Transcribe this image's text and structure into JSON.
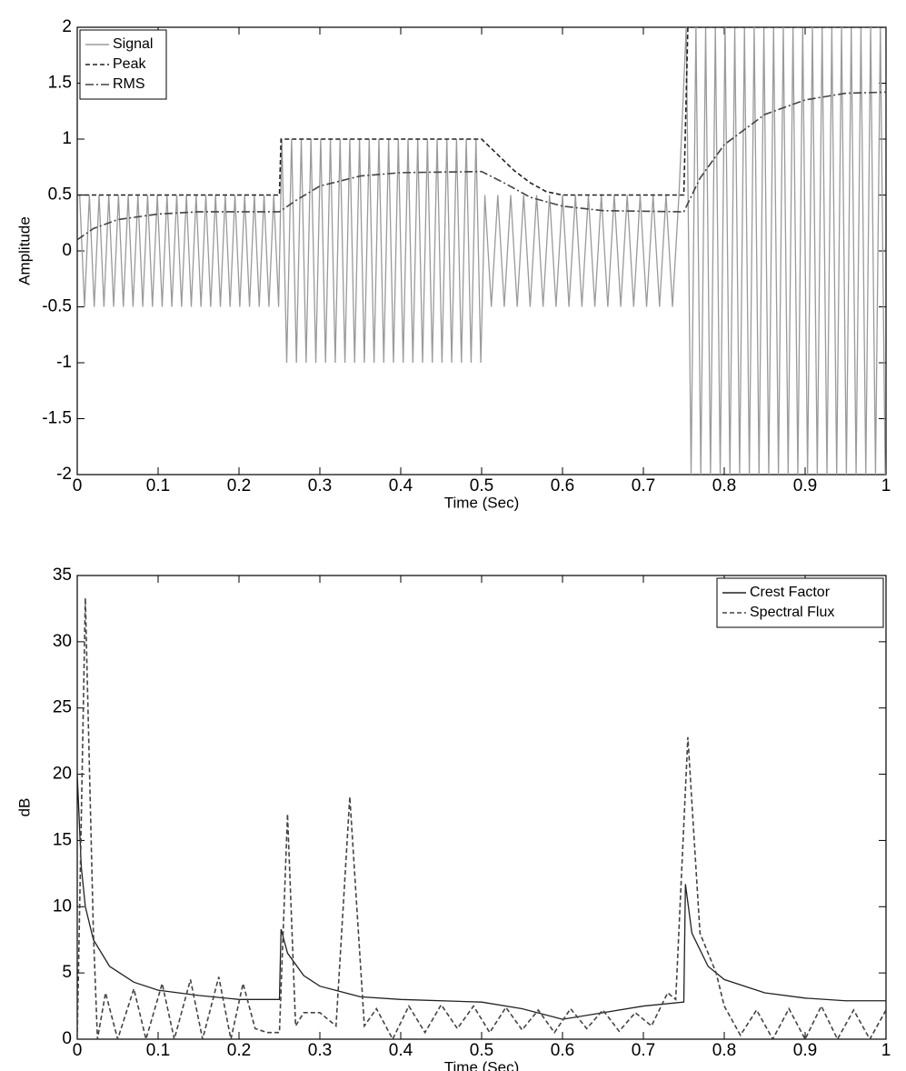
{
  "chart_data": [
    {
      "type": "line",
      "xlabel": "Time (Sec)",
      "ylabel": "Amplitude",
      "xlim": [
        0,
        1
      ],
      "ylim": [
        -2,
        2
      ],
      "xticks": [
        0,
        0.1,
        0.2,
        0.3,
        0.4,
        0.5,
        0.6,
        0.7,
        0.8,
        0.9,
        1
      ],
      "yticks": [
        -2,
        -1.5,
        -1,
        -0.5,
        0,
        0.5,
        1,
        1.5,
        2
      ],
      "legend": "upper left",
      "series": [
        {
          "name": "Signal",
          "color": "#9a9a9a",
          "dash": "solid",
          "x": [
            0.003,
            0.009,
            0.015,
            0.021,
            0.027,
            0.033,
            0.039,
            0.045,
            0.051,
            0.057,
            0.063,
            0.069,
            0.075,
            0.081,
            0.087,
            0.093,
            0.099,
            0.105,
            0.111,
            0.117,
            0.123,
            0.129,
            0.135,
            0.141,
            0.147,
            0.153,
            0.159,
            0.165,
            0.171,
            0.177,
            0.183,
            0.189,
            0.195,
            0.201,
            0.207,
            0.213,
            0.219,
            0.225,
            0.231,
            0.237,
            0.243,
            0.249,
            0.253,
            0.259,
            0.265,
            0.271,
            0.277,
            0.283,
            0.289,
            0.295,
            0.301,
            0.307,
            0.313,
            0.319,
            0.325,
            0.331,
            0.337,
            0.343,
            0.349,
            0.355,
            0.361,
            0.367,
            0.373,
            0.379,
            0.385,
            0.391,
            0.397,
            0.403,
            0.409,
            0.415,
            0.421,
            0.427,
            0.433,
            0.439,
            0.445,
            0.451,
            0.457,
            0.463,
            0.469,
            0.475,
            0.481,
            0.487,
            0.493,
            0.499,
            0.504,
            0.512,
            0.52,
            0.528,
            0.536,
            0.544,
            0.552,
            0.56,
            0.568,
            0.576,
            0.584,
            0.592,
            0.6,
            0.608,
            0.616,
            0.624,
            0.632,
            0.64,
            0.648,
            0.656,
            0.664,
            0.672,
            0.68,
            0.688,
            0.696,
            0.704,
            0.712,
            0.72,
            0.728,
            0.736,
            0.744,
            0.753,
            0.759,
            0.765,
            0.771,
            0.777,
            0.783,
            0.789,
            0.795,
            0.801,
            0.807,
            0.813,
            0.819,
            0.825,
            0.831,
            0.837,
            0.843,
            0.849,
            0.855,
            0.861,
            0.867,
            0.873,
            0.879,
            0.885,
            0.891,
            0.897,
            0.903,
            0.909,
            0.915,
            0.921,
            0.927,
            0.933,
            0.939,
            0.945,
            0.951,
            0.957,
            0.963,
            0.969,
            0.975,
            0.981,
            0.987,
            0.993,
            0.999
          ],
          "values": [
            0.5,
            -0.5,
            0.5,
            -0.5,
            0.5,
            -0.5,
            0.5,
            -0.5,
            0.5,
            -0.5,
            0.5,
            -0.5,
            0.5,
            -0.5,
            0.5,
            -0.5,
            0.5,
            -0.5,
            0.5,
            -0.5,
            0.5,
            -0.5,
            0.5,
            -0.5,
            0.5,
            -0.5,
            0.5,
            -0.5,
            0.5,
            -0.5,
            0.5,
            -0.5,
            0.5,
            -0.5,
            0.5,
            -0.5,
            0.5,
            -0.5,
            0.5,
            -0.5,
            0.5,
            -0.5,
            1,
            -1,
            1,
            -1,
            1,
            -1,
            1,
            -1,
            1,
            -1,
            1,
            -1,
            1,
            -1,
            1,
            -1,
            1,
            -1,
            1,
            -1,
            1,
            -1,
            1,
            -1,
            1,
            -1,
            1,
            -1,
            1,
            -1,
            1,
            -1,
            1,
            -1,
            1,
            -1,
            1,
            -1,
            1,
            -1,
            1,
            -1,
            0.5,
            -0.5,
            0.5,
            -0.5,
            0.5,
            -0.5,
            0.5,
            -0.5,
            0.5,
            -0.5,
            0.5,
            -0.5,
            0.5,
            -0.5,
            0.5,
            -0.5,
            0.5,
            -0.5,
            0.5,
            -0.5,
            0.5,
            -0.5,
            0.5,
            -0.5,
            0.5,
            -0.5,
            0.5,
            -0.5,
            0.5,
            -0.5,
            0.5,
            2,
            -2,
            2,
            -2,
            2,
            -2,
            2,
            -2,
            2,
            -2,
            2,
            -2,
            2,
            -2,
            2,
            -2,
            2,
            -2,
            2,
            -2,
            2,
            -2,
            2,
            -2,
            2,
            -2,
            2,
            -2,
            2,
            -2,
            2,
            -2,
            2,
            -2,
            2,
            -2,
            2,
            -2,
            2,
            -2,
            2,
            -2
          ]
        },
        {
          "name": "Peak",
          "color": "#222222",
          "dash": "dashed",
          "x": [
            0,
            0.25,
            0.252,
            0.5,
            0.52,
            0.54,
            0.56,
            0.58,
            0.6,
            0.75,
            0.755,
            1
          ],
          "values": [
            0.5,
            0.5,
            1,
            1,
            0.86,
            0.72,
            0.61,
            0.53,
            0.5,
            0.5,
            2,
            2
          ]
        },
        {
          "name": "RMS",
          "color": "#444444",
          "dash": "dashdot",
          "x": [
            0,
            0.02,
            0.05,
            0.1,
            0.15,
            0.25,
            0.27,
            0.3,
            0.35,
            0.4,
            0.5,
            0.53,
            0.56,
            0.6,
            0.65,
            0.75,
            0.77,
            0.8,
            0.85,
            0.9,
            0.95,
            1
          ],
          "values": [
            0.1,
            0.2,
            0.28,
            0.33,
            0.35,
            0.35,
            0.45,
            0.58,
            0.67,
            0.7,
            0.71,
            0.6,
            0.48,
            0.4,
            0.36,
            0.35,
            0.65,
            0.95,
            1.22,
            1.35,
            1.41,
            1.42
          ]
        }
      ]
    },
    {
      "type": "line",
      "xlabel": "Time (Sec)",
      "ylabel": "dB",
      "xlim": [
        0,
        1
      ],
      "ylim": [
        0,
        35
      ],
      "xticks": [
        0,
        0.1,
        0.2,
        0.3,
        0.4,
        0.5,
        0.6,
        0.7,
        0.8,
        0.9,
        1
      ],
      "yticks": [
        0,
        5,
        10,
        15,
        20,
        25,
        30,
        35
      ],
      "legend": "upper right",
      "series": [
        {
          "name": "Crest Factor",
          "color": "#222222",
          "dash": "solid",
          "x": [
            0,
            0.005,
            0.01,
            0.02,
            0.04,
            0.07,
            0.1,
            0.15,
            0.2,
            0.25,
            0.252,
            0.26,
            0.28,
            0.3,
            0.35,
            0.4,
            0.5,
            0.55,
            0.6,
            0.65,
            0.7,
            0.75,
            0.752,
            0.76,
            0.78,
            0.8,
            0.85,
            0.9,
            0.95,
            1
          ],
          "values": [
            20,
            13,
            10,
            7.5,
            5.5,
            4.3,
            3.7,
            3.3,
            3,
            3,
            8.3,
            6.5,
            4.8,
            4,
            3.2,
            3,
            2.8,
            2.3,
            1.5,
            2,
            2.5,
            2.8,
            11.7,
            8,
            5.5,
            4.5,
            3.5,
            3.1,
            2.9,
            2.9
          ]
        },
        {
          "name": "Spectral Flux",
          "color": "#444444",
          "dash": "dashed",
          "x": [
            0,
            0.01,
            0.02,
            0.025,
            0.035,
            0.05,
            0.07,
            0.085,
            0.105,
            0.12,
            0.14,
            0.155,
            0.175,
            0.19,
            0.205,
            0.22,
            0.235,
            0.25,
            0.26,
            0.27,
            0.28,
            0.3,
            0.32,
            0.337,
            0.355,
            0.37,
            0.39,
            0.41,
            0.43,
            0.45,
            0.47,
            0.49,
            0.51,
            0.53,
            0.55,
            0.57,
            0.59,
            0.61,
            0.63,
            0.65,
            0.67,
            0.69,
            0.71,
            0.73,
            0.74,
            0.755,
            0.77,
            0.79,
            0.8,
            0.82,
            0.84,
            0.86,
            0.88,
            0.9,
            0.92,
            0.94,
            0.96,
            0.98,
            1
          ],
          "values": [
            0,
            33.3,
            8,
            0,
            3.5,
            0,
            3.8,
            0,
            4.2,
            0,
            4.5,
            0,
            4.7,
            0,
            4.2,
            0.8,
            0.5,
            0.5,
            17,
            1,
            2,
            2,
            1,
            18.3,
            1,
            2.3,
            0,
            2.5,
            0.5,
            2.6,
            0.8,
            2.5,
            0.5,
            2.4,
            0.7,
            2.2,
            0.5,
            2.3,
            0.8,
            2.2,
            0.6,
            2,
            1,
            3.5,
            3,
            22.8,
            8,
            5,
            2.5,
            0.3,
            2.2,
            0,
            2.3,
            0,
            2.5,
            0,
            2.2,
            0,
            2.2
          ]
        }
      ]
    }
  ]
}
